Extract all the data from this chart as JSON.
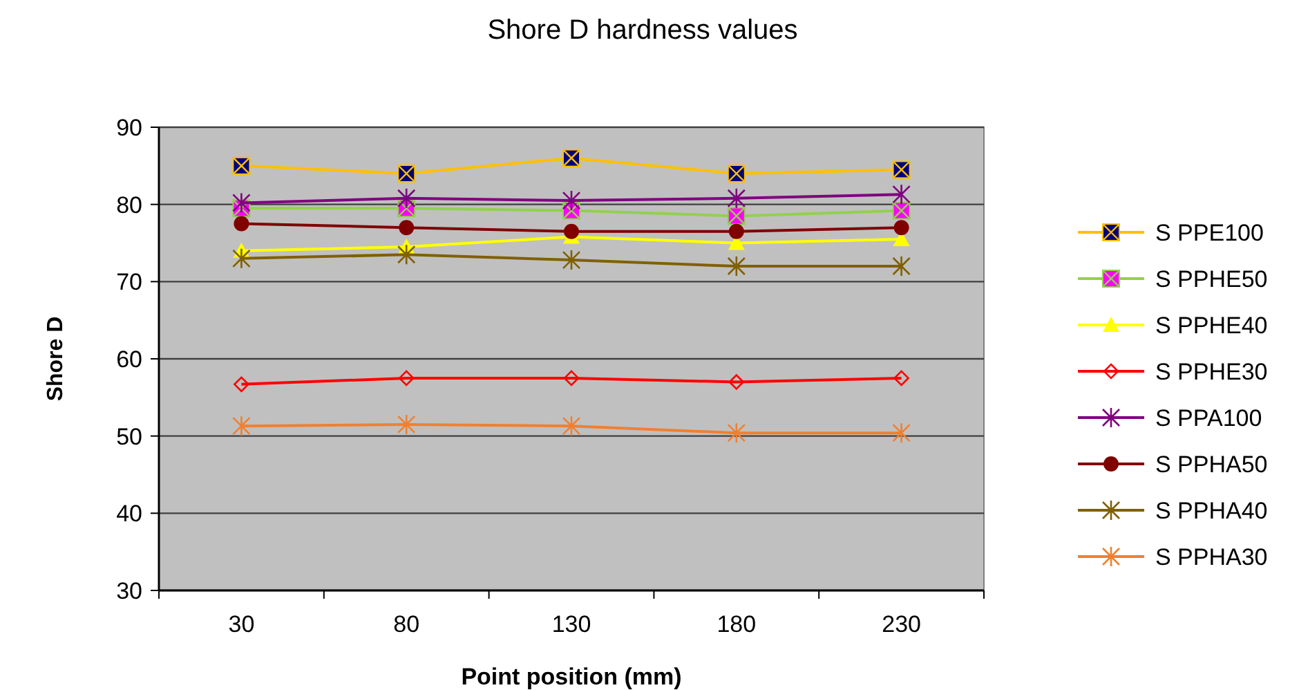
{
  "chart_data": {
    "type": "line",
    "title": "Shore D hardness values",
    "xlabel": "Point position (mm)",
    "ylabel": "Shore D",
    "categories": [
      "30",
      "80",
      "130",
      "180",
      "230"
    ],
    "ylim": [
      30,
      90
    ],
    "yticks": [
      30,
      40,
      50,
      60,
      70,
      80,
      90
    ],
    "grid": "y",
    "legend": "right",
    "series": [
      {
        "name": "S PPE100",
        "color": "#ffc000",
        "marker": "square",
        "values": [
          85,
          84,
          86,
          84,
          84.5
        ]
      },
      {
        "name": "S PPHE50",
        "color": "#92d050",
        "marker": "square",
        "values": [
          79.5,
          79.5,
          79.2,
          78.5,
          79.2
        ]
      },
      {
        "name": "S PPHE40",
        "color": "#ffff00",
        "marker": "triangle",
        "values": [
          74,
          74.5,
          75.8,
          75,
          75.5
        ]
      },
      {
        "name": "S PPHE30",
        "color": "#ff0000",
        "marker": "diamond",
        "values": [
          56.7,
          57.5,
          57.5,
          57,
          57.5
        ]
      },
      {
        "name": "S PPA100",
        "color": "#800080",
        "marker": "cross",
        "values": [
          80.2,
          80.8,
          80.5,
          80.8,
          81.3
        ]
      },
      {
        "name": "S PPHA50",
        "color": "#800000",
        "marker": "circle",
        "values": [
          77.5,
          77,
          76.5,
          76.5,
          77
        ]
      },
      {
        "name": "S PPHA40",
        "color": "#806000",
        "marker": "cross",
        "values": [
          73,
          73.5,
          72.8,
          72,
          72
        ]
      },
      {
        "name": "S PPHA30",
        "color": "#f08030",
        "marker": "cross",
        "values": [
          51.3,
          51.5,
          51.3,
          50.4,
          50.4
        ]
      }
    ]
  }
}
